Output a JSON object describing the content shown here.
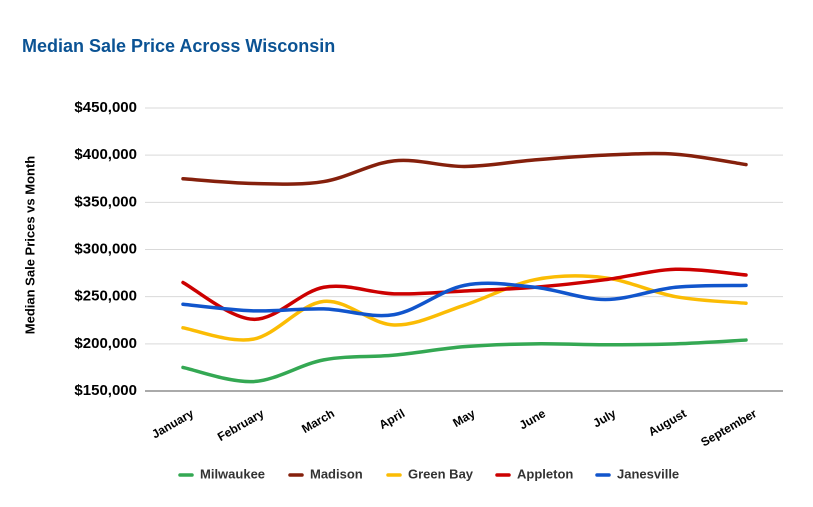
{
  "chart_data": {
    "type": "line",
    "title": "Median Sale Price Across Wisconsin",
    "y_label": "Median Sale Prices vs Month",
    "categories": [
      "January",
      "February",
      "March",
      "April",
      "May",
      "June",
      "July",
      "August",
      "September"
    ],
    "series": [
      {
        "name": "Milwaukee",
        "color": "#34a853",
        "values": [
          175000,
          160000,
          183000,
          188000,
          197000,
          200000,
          199000,
          200000,
          204000
        ]
      },
      {
        "name": "Madison",
        "color": "#85200c",
        "values": [
          375000,
          370000,
          372000,
          394000,
          388000,
          395000,
          400000,
          401000,
          390000
        ]
      },
      {
        "name": "Green Bay",
        "color": "#fbbc04",
        "values": [
          217000,
          205000,
          245000,
          220000,
          241000,
          268000,
          270000,
          250000,
          243000
        ]
      },
      {
        "name": "Appleton",
        "color": "#cc0000",
        "values": [
          265000,
          226000,
          260000,
          253000,
          256000,
          260000,
          268000,
          279000,
          273000
        ]
      },
      {
        "name": "Janesville",
        "color": "#1155cc",
        "values": [
          242000,
          235000,
          237000,
          231000,
          262000,
          260000,
          247000,
          260000,
          262000
        ]
      }
    ],
    "ylim": [
      150000,
      450000
    ],
    "yticks": [
      {
        "value": 150000,
        "label": "$150,000"
      },
      {
        "value": 200000,
        "label": "$200,000"
      },
      {
        "value": 250000,
        "label": "$250,000"
      },
      {
        "value": 300000,
        "label": "$300,000"
      },
      {
        "value": 350000,
        "label": "$350,000"
      },
      {
        "value": 400000,
        "label": "$400,000"
      },
      {
        "value": 450000,
        "label": "$450,000"
      }
    ],
    "grid": true,
    "smooth": true,
    "legend": "bottom"
  }
}
